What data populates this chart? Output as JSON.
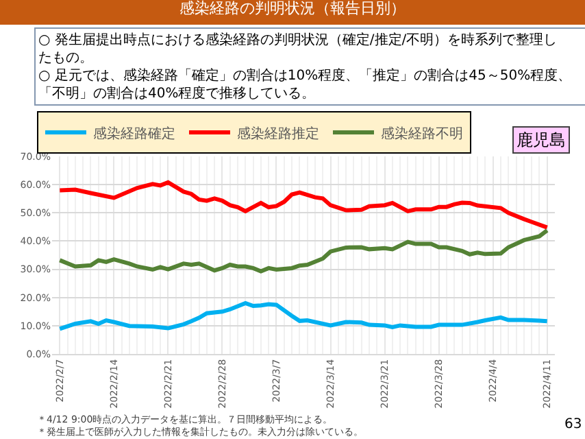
{
  "chart_data": {
    "type": "line",
    "title": "感染経路の判明状況（報告日別）",
    "annotations": [
      "○ 発生届提出時点における感染経路の判明状況（確定/推定/不明）を時系列で整理したもの。",
      "○ 足元では、感染経路「確定」の割合は10%程度、「推定」の割合は45～50%程度、「不明」の割合は40%程度で推移している。",
      "鹿児島",
      "＊4/12 9:00時点の入力データを基に算出。７日間移動平均による。",
      "＊発生届上で医師が入力した情報を集計したもの。未入力分は除いている。",
      "63"
    ],
    "series": [
      {
        "name": "感染経路確定",
        "color": "#00b0f0",
        "x": [
          "2022-02-07",
          "2022-02-09",
          "2022-02-11",
          "2022-02-12",
          "2022-02-13",
          "2022-02-14",
          "2022-02-16",
          "2022-02-19",
          "2022-02-21",
          "2022-02-23",
          "2022-02-24",
          "2022-02-25",
          "2022-02-26",
          "2022-02-28",
          "2022-03-01",
          "2022-03-03",
          "2022-03-04",
          "2022-03-05",
          "2022-03-06",
          "2022-03-07",
          "2022-03-09",
          "2022-03-10",
          "2022-03-11",
          "2022-03-14",
          "2022-03-16",
          "2022-03-18",
          "2022-03-19",
          "2022-03-21",
          "2022-03-22",
          "2022-03-23",
          "2022-03-25",
          "2022-03-27",
          "2022-03-28",
          "2022-03-31",
          "2022-04-02",
          "2022-04-03",
          "2022-04-05",
          "2022-04-06",
          "2022-04-08",
          "2022-04-10",
          "2022-04-11"
        ],
        "values": [
          8.9,
          10.7,
          11.6,
          10.7,
          11.9,
          11.3,
          9.9,
          9.7,
          9.1,
          10.5,
          11.6,
          12.8,
          14.4,
          15,
          15.8,
          18,
          17,
          17.2,
          17.6,
          17.4,
          13.5,
          11.7,
          11.9,
          10.1,
          11.3,
          11.1,
          10.3,
          10.1,
          9.5,
          10.1,
          9.6,
          9.6,
          10.3,
          10.3,
          11.3,
          11.9,
          12.9,
          12,
          12,
          11.8,
          11.6
        ]
      },
      {
        "name": "感染経路推定",
        "color": "#ff0000",
        "x": [
          "2022-02-07",
          "2022-02-09",
          "2022-02-11",
          "2022-02-14",
          "2022-02-17",
          "2022-02-19",
          "2022-02-20",
          "2022-02-21",
          "2022-02-23",
          "2022-02-24",
          "2022-02-25",
          "2022-02-26",
          "2022-02-27",
          "2022-02-28",
          "2022-03-01",
          "2022-03-02",
          "2022-03-03",
          "2022-03-05",
          "2022-03-06",
          "2022-03-07",
          "2022-03-08",
          "2022-03-09",
          "2022-03-10",
          "2022-03-12",
          "2022-03-13",
          "2022-03-14",
          "2022-03-16",
          "2022-03-18",
          "2022-03-19",
          "2022-03-21",
          "2022-03-22",
          "2022-03-24",
          "2022-03-25",
          "2022-03-27",
          "2022-03-28",
          "2022-03-29",
          "2022-03-30",
          "2022-03-31",
          "2022-04-01",
          "2022-04-02",
          "2022-04-05",
          "2022-04-06",
          "2022-04-08",
          "2022-04-09",
          "2022-04-11"
        ],
        "values": [
          58,
          58.2,
          57,
          55.3,
          58.8,
          60.2,
          59.7,
          60.8,
          57.5,
          56.7,
          54.7,
          54.3,
          55.1,
          54.3,
          52.7,
          52,
          50.6,
          53.5,
          52,
          52.4,
          53.9,
          56.5,
          57.2,
          55.5,
          55.1,
          52.7,
          50.9,
          51.1,
          52.3,
          52.7,
          53.5,
          50.6,
          51.2,
          51.2,
          52.1,
          52.1,
          53,
          53.6,
          53.5,
          52.6,
          51.7,
          50,
          47.8,
          46.8,
          44.8
        ]
      },
      {
        "name": "感染経路不明",
        "color": "#548235",
        "x": [
          "2022-02-07",
          "2022-02-09",
          "2022-02-11",
          "2022-02-12",
          "2022-02-13",
          "2022-02-14",
          "2022-02-16",
          "2022-02-17",
          "2022-02-19",
          "2022-02-20",
          "2022-02-21",
          "2022-02-23",
          "2022-02-24",
          "2022-02-25",
          "2022-02-27",
          "2022-02-28",
          "2022-03-01",
          "2022-03-02",
          "2022-03-03",
          "2022-03-04",
          "2022-03-05",
          "2022-03-06",
          "2022-03-07",
          "2022-03-09",
          "2022-03-10",
          "2022-03-11",
          "2022-03-13",
          "2022-03-14",
          "2022-03-16",
          "2022-03-18",
          "2022-03-19",
          "2022-03-21",
          "2022-03-22",
          "2022-03-24",
          "2022-03-25",
          "2022-03-27",
          "2022-03-28",
          "2022-03-29",
          "2022-03-31",
          "2022-04-01",
          "2022-04-02",
          "2022-04-03",
          "2022-04-05",
          "2022-04-06",
          "2022-04-08",
          "2022-04-10",
          "2022-04-11"
        ],
        "values": [
          33.2,
          31,
          31.4,
          33.2,
          32.6,
          33.5,
          32,
          31,
          29.9,
          30.8,
          30,
          32,
          31.6,
          32,
          29.6,
          30.4,
          31.6,
          31,
          31,
          30.4,
          29.3,
          30.4,
          29.9,
          30.4,
          31.3,
          31.6,
          33.8,
          36.3,
          37.7,
          37.8,
          37.1,
          37.5,
          37.1,
          39.7,
          39,
          39,
          37.8,
          37.8,
          36.5,
          35.3,
          35.9,
          35.4,
          35.6,
          37.8,
          40.3,
          41.7,
          43.8
        ]
      }
    ],
    "xlim": [
      "2022-02-06",
      "2022-04-12"
    ],
    "xticks": [
      {
        "value": "2022-02-07",
        "label": "2022/2/7"
      },
      {
        "value": "2022-02-14",
        "label": "2022/2/14"
      },
      {
        "value": "2022-02-21",
        "label": "2022/2/21"
      },
      {
        "value": "2022-02-28",
        "label": "2022/2/28"
      },
      {
        "value": "2022-03-07",
        "label": "2022/3/7"
      },
      {
        "value": "2022-03-14",
        "label": "2022/3/14"
      },
      {
        "value": "2022-03-21",
        "label": "2022/3/21"
      },
      {
        "value": "2022-03-28",
        "label": "2022/3/28"
      },
      {
        "value": "2022-04-04",
        "label": "2022/4/4"
      },
      {
        "value": "2022-04-11",
        "label": "2022/4/11"
      }
    ],
    "ylim": [
      0,
      70
    ],
    "yticks": [
      {
        "value": 0,
        "label": "0.0%"
      },
      {
        "value": 10,
        "label": "10.0%"
      },
      {
        "value": 20,
        "label": "20.0%"
      },
      {
        "value": 30,
        "label": "30.0%"
      },
      {
        "value": 40,
        "label": "40.0%"
      },
      {
        "value": 50,
        "label": "50.0%"
      },
      {
        "value": 60,
        "label": "60.0%"
      },
      {
        "value": 70,
        "label": "70.0%"
      }
    ],
    "grid": true,
    "legend": "top left",
    "marker": "none",
    "line_style": "solid"
  }
}
